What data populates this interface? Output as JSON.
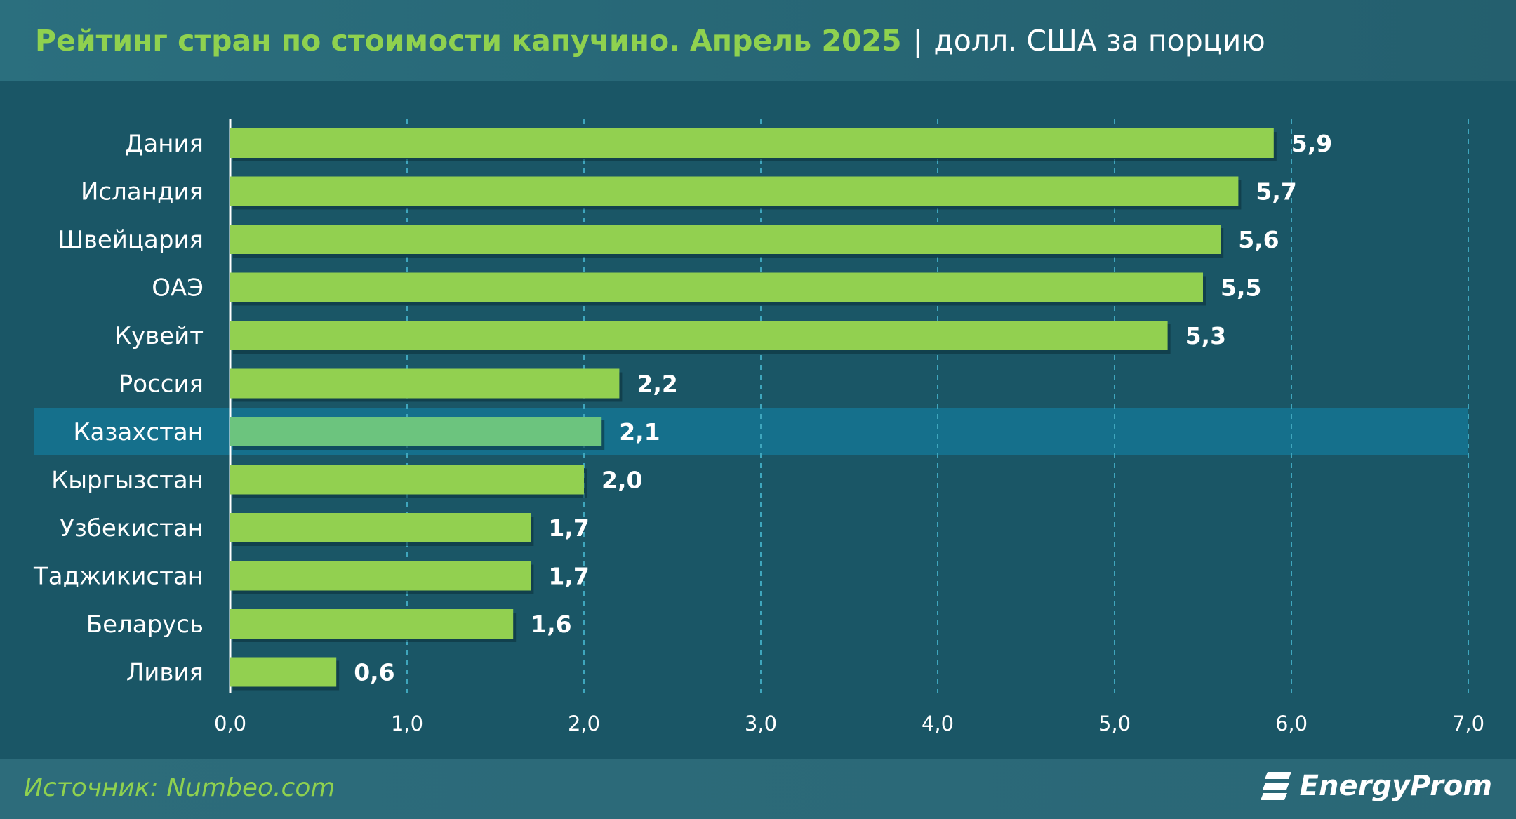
{
  "header": {
    "title": "Рейтинг стран по стоимости капучино. Апрель 2025",
    "separator": "|",
    "subtitle": "долл. США за порцию"
  },
  "footer": {
    "source": "Источник: Numbeo.com",
    "logo_text": "EnergyProm",
    "logo_icon": "energyprom-logo-icon"
  },
  "colors": {
    "background": "#1a5666",
    "title_green": "#8fd14f",
    "bar": "#92d050",
    "bar_highlight": "#6cc47e",
    "highlight_band": "#15708c",
    "highlight_text": "#cde6ef",
    "grid": "#3fa6bd"
  },
  "chart_data": {
    "type": "bar",
    "orientation": "horizontal",
    "categories": [
      "Дания",
      "Исландия",
      "Швейцария",
      "ОАЭ",
      "Кувейт",
      "Россия",
      "Казахстан",
      "Кыргызстан",
      "Узбекистан",
      "Таджикистан",
      "Беларусь",
      "Ливия"
    ],
    "values": [
      5.9,
      5.7,
      5.6,
      5.5,
      5.3,
      2.2,
      2.1,
      2.0,
      1.7,
      1.7,
      1.6,
      0.6
    ],
    "value_labels": [
      "5,9",
      "5,7",
      "5,6",
      "5,5",
      "5,3",
      "2,2",
      "2,1",
      "2,0",
      "1,7",
      "1,7",
      "1,6",
      "0,6"
    ],
    "highlight": "Казахстан",
    "xlim": [
      0,
      7
    ],
    "xticks": [
      0,
      1,
      2,
      3,
      4,
      5,
      6,
      7
    ],
    "xtick_labels": [
      "0,0",
      "1,0",
      "2,0",
      "3,0",
      "4,0",
      "5,0",
      "6,0",
      "7,0"
    ],
    "grid": "vertical dashed",
    "legend": "none"
  }
}
